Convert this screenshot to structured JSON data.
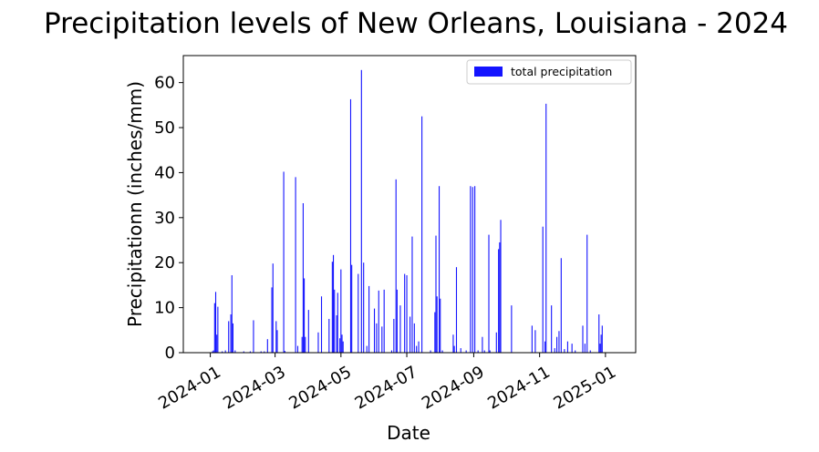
{
  "chart_data": {
    "type": "bar",
    "title": "Precipitation levels of New Orleans, Louisiana - 2024",
    "xlabel": "Date",
    "ylabel": "Precipitationn (inches/mm)",
    "xlim": [
      "2023-12-07",
      "2025-01-29"
    ],
    "ylim": [
      0,
      66
    ],
    "x_ticks": [
      "2024-01",
      "2024-03",
      "2024-05",
      "2024-07",
      "2024-09",
      "2024-11",
      "2025-01"
    ],
    "y_ticks": [
      0,
      10,
      20,
      30,
      40,
      50,
      60
    ],
    "grid": false,
    "legend": {
      "position": "top-right",
      "entries": [
        "total precipitation"
      ]
    },
    "series": [
      {
        "name": "total precipitation",
        "color": "#1414ff",
        "points": [
          [
            "2024-01-03",
            0.3
          ],
          [
            "2024-01-04",
            0.5
          ],
          [
            "2024-01-05",
            11.0
          ],
          [
            "2024-01-06",
            13.5
          ],
          [
            "2024-01-07",
            4.0
          ],
          [
            "2024-01-08",
            10.2
          ],
          [
            "2024-01-12",
            0.3
          ],
          [
            "2024-01-15",
            0.5
          ],
          [
            "2024-01-18",
            7.0
          ],
          [
            "2024-01-20",
            8.5
          ],
          [
            "2024-01-21",
            17.2
          ],
          [
            "2024-01-22",
            6.5
          ],
          [
            "2024-01-24",
            0.5
          ],
          [
            "2024-02-01",
            0.3
          ],
          [
            "2024-02-07",
            0.3
          ],
          [
            "2024-02-10",
            7.2
          ],
          [
            "2024-02-17",
            0.3
          ],
          [
            "2024-02-20",
            0.3
          ],
          [
            "2024-02-23",
            3.0
          ],
          [
            "2024-02-27",
            14.5
          ],
          [
            "2024-02-28",
            19.8
          ],
          [
            "2024-03-02",
            7.0
          ],
          [
            "2024-03-03",
            5.0
          ],
          [
            "2024-03-09",
            40.2
          ],
          [
            "2024-03-10",
            0.4
          ],
          [
            "2024-03-20",
            39.0
          ],
          [
            "2024-03-22",
            1.5
          ],
          [
            "2024-03-26",
            3.5
          ],
          [
            "2024-03-27",
            33.2
          ],
          [
            "2024-03-28",
            16.5
          ],
          [
            "2024-03-29",
            3.5
          ],
          [
            "2024-04-01",
            9.5
          ],
          [
            "2024-04-10",
            4.5
          ],
          [
            "2024-04-13",
            12.5
          ],
          [
            "2024-04-20",
            7.5
          ],
          [
            "2024-04-23",
            20.2
          ],
          [
            "2024-04-24",
            21.7
          ],
          [
            "2024-04-25",
            14.0
          ],
          [
            "2024-04-27",
            8.3
          ],
          [
            "2024-04-28",
            13.3
          ],
          [
            "2024-04-30",
            3.2
          ],
          [
            "2024-05-01",
            18.5
          ],
          [
            "2024-05-02",
            4.0
          ],
          [
            "2024-05-03",
            2.5
          ],
          [
            "2024-05-10",
            56.3
          ],
          [
            "2024-05-11",
            19.5
          ],
          [
            "2024-05-17",
            17.5
          ],
          [
            "2024-05-20",
            62.8
          ],
          [
            "2024-05-22",
            20.0
          ],
          [
            "2024-05-25",
            1.5
          ],
          [
            "2024-05-27",
            14.8
          ],
          [
            "2024-06-01",
            9.8
          ],
          [
            "2024-06-03",
            6.5
          ],
          [
            "2024-06-05",
            13.8
          ],
          [
            "2024-06-08",
            5.8
          ],
          [
            "2024-06-10",
            14.0
          ],
          [
            "2024-06-17",
            0.5
          ],
          [
            "2024-06-19",
            7.5
          ],
          [
            "2024-06-21",
            38.5
          ],
          [
            "2024-06-22",
            14.0
          ],
          [
            "2024-06-25",
            10.5
          ],
          [
            "2024-06-29",
            17.5
          ],
          [
            "2024-07-01",
            17.2
          ],
          [
            "2024-07-04",
            8.0
          ],
          [
            "2024-07-06",
            25.8
          ],
          [
            "2024-07-08",
            6.5
          ],
          [
            "2024-07-10",
            1.5
          ],
          [
            "2024-07-12",
            2.5
          ],
          [
            "2024-07-15",
            52.5
          ],
          [
            "2024-07-23",
            0.5
          ],
          [
            "2024-07-27",
            9.0
          ],
          [
            "2024-07-28",
            26.0
          ],
          [
            "2024-07-29",
            12.5
          ],
          [
            "2024-07-31",
            37.0
          ],
          [
            "2024-08-01",
            12.0
          ],
          [
            "2024-08-03",
            0.5
          ],
          [
            "2024-08-13",
            4.0
          ],
          [
            "2024-08-14",
            1.5
          ],
          [
            "2024-08-16",
            19.0
          ],
          [
            "2024-08-20",
            1.0
          ],
          [
            "2024-08-25",
            0.5
          ],
          [
            "2024-08-29",
            37.0
          ],
          [
            "2024-08-31",
            36.8
          ],
          [
            "2024-09-02",
            37.0
          ],
          [
            "2024-09-05",
            0.5
          ],
          [
            "2024-09-09",
            3.5
          ],
          [
            "2024-09-11",
            0.5
          ],
          [
            "2024-09-15",
            26.2
          ],
          [
            "2024-09-16",
            0.5
          ],
          [
            "2024-09-22",
            4.5
          ],
          [
            "2024-09-24",
            23.0
          ],
          [
            "2024-09-25",
            24.5
          ],
          [
            "2024-09-26",
            29.5
          ],
          [
            "2024-10-06",
            10.5
          ],
          [
            "2024-10-25",
            6.0
          ],
          [
            "2024-10-28",
            5.0
          ],
          [
            "2024-11-04",
            28.0
          ],
          [
            "2024-11-06",
            2.5
          ],
          [
            "2024-11-07",
            55.3
          ],
          [
            "2024-11-12",
            10.5
          ],
          [
            "2024-11-15",
            1.0
          ],
          [
            "2024-11-17",
            3.5
          ],
          [
            "2024-11-19",
            4.8
          ],
          [
            "2024-11-21",
            21.0
          ],
          [
            "2024-11-24",
            0.8
          ],
          [
            "2024-11-27",
            2.5
          ],
          [
            "2024-12-01",
            2.0
          ],
          [
            "2024-12-04",
            0.5
          ],
          [
            "2024-12-11",
            6.0
          ],
          [
            "2024-12-13",
            2.0
          ],
          [
            "2024-12-15",
            26.2
          ],
          [
            "2024-12-18",
            0.5
          ],
          [
            "2024-12-26",
            8.5
          ],
          [
            "2024-12-27",
            2.0
          ],
          [
            "2024-12-28",
            4.0
          ],
          [
            "2024-12-29",
            6.0
          ]
        ]
      }
    ]
  }
}
